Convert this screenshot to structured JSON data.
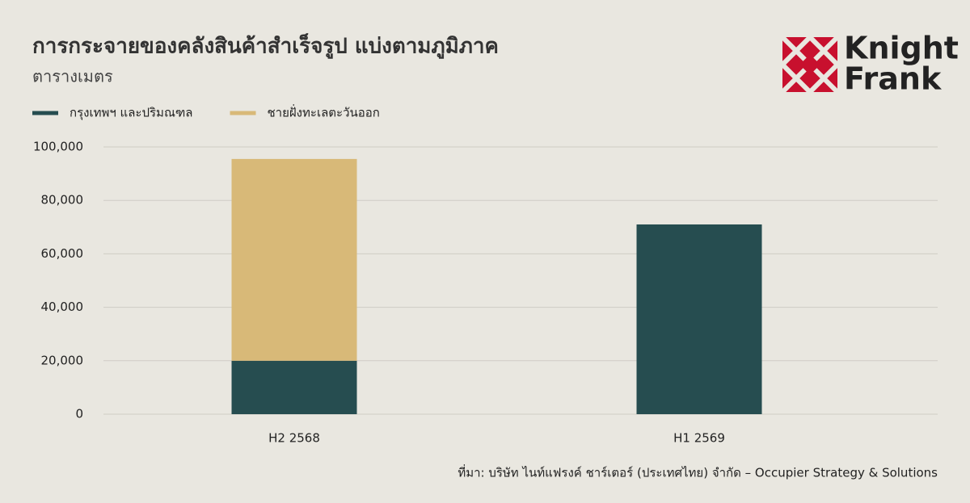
{
  "chart_data": {
    "type": "bar",
    "stacked": true,
    "title": "การกระจายของคลังสินค้าสำเร็จรูป แบ่งตามภูมิภาค",
    "subtitle": "ตารางเมตร",
    "categories": [
      "H2 2568",
      "H1 2569"
    ],
    "series": [
      {
        "name": "กรุงเทพฯ และปริมณฑล",
        "color": "#264d50",
        "values": [
          20000,
          71000
        ]
      },
      {
        "name": "ชายฝั่งทะเลตะวันออก",
        "color": "#d8b978",
        "values": [
          75500,
          null
        ]
      }
    ],
    "ylim": [
      0,
      100000
    ],
    "yticks": [
      0,
      {
        "value": 20000,
        "label": "20,000"
      },
      {
        "value": 40000,
        "label": "40,000"
      },
      {
        "value": 60000,
        "label": "60,000"
      },
      {
        "value": 80000,
        "label": "80,000"
      },
      {
        "value": 100000,
        "label": "100,000"
      }
    ],
    "grid": true,
    "legend": "top-left",
    "source": "ที่มา: บริษัท ไนท์แฟรงค์ ชาร์เตอร์ (ประเทศไทย) จำกัด – Occupier Strategy & Solutions",
    "logo": {
      "line1": "Knight",
      "line2": "Frank",
      "color": "#c8102e"
    }
  }
}
